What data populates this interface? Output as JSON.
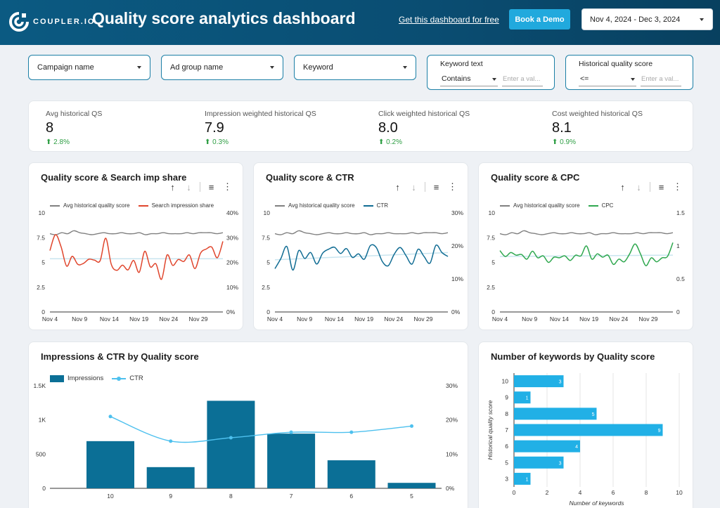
{
  "header": {
    "brand": "COUPLER.IO",
    "title": "Quality score analytics dashboard",
    "get_link": "Get this dashboard for free",
    "demo_label": "Book a Demo",
    "date_range": "Nov 4, 2024 - Dec 3, 2024"
  },
  "filters": {
    "campaign": "Campaign name",
    "ad_group": "Ad group name",
    "keyword": "Keyword",
    "keyword_text": {
      "title": "Keyword text",
      "operator": "Contains",
      "placeholder": "Enter a val..."
    },
    "hist_qs": {
      "title": "Historical quality score",
      "operator": "<=",
      "placeholder": "Enter a val..."
    }
  },
  "kpis": [
    {
      "label": "Avg historical QS",
      "value": "8",
      "delta": "2.8%"
    },
    {
      "label": "Impression weighted historical QS",
      "value": "7.9",
      "delta": "0.3%"
    },
    {
      "label": "Click weighted historical QS",
      "value": "8.0",
      "delta": "0.2%"
    },
    {
      "label": "Cost weighted historical QS",
      "value": "8.1",
      "delta": "0.9%"
    }
  ],
  "colors": {
    "header": "#0a4d72",
    "accent": "#21a9dd",
    "bar": "#0b6f96",
    "red": "#e0452c",
    "blue": "#106c93",
    "green": "#2fa84f",
    "grey": "#808080"
  },
  "icons": [
    "arrow-up-icon",
    "arrow-down-icon",
    "filter-icon",
    "more-vert-icon",
    "chevron-down-icon",
    "trend-up-icon"
  ],
  "chart_data": [
    {
      "type": "line",
      "title": "Quality score & Search imp share",
      "x_ticks": [
        "Nov 4",
        "Nov 9",
        "Nov 14",
        "Nov 19",
        "Nov 24",
        "Nov 29"
      ],
      "y_left_ticks": [
        "0",
        "2.5",
        "5",
        "7.5",
        "10"
      ],
      "y_right_ticks": [
        "0%",
        "10%",
        "20%",
        "30%",
        "40%"
      ],
      "ylim_left": [
        0,
        10
      ],
      "ylim_right": [
        0,
        40
      ],
      "trendline": [
        21.5,
        21.5
      ],
      "series": [
        {
          "name": "Avg historical quality score",
          "axis": "left",
          "color": "#808080",
          "values": [
            7.9,
            7.8,
            8.0,
            7.9,
            8.2,
            8.0,
            7.9,
            7.8,
            7.9,
            8.0,
            7.9,
            7.9,
            8.0,
            7.9,
            7.9,
            8.0,
            7.8,
            7.9,
            7.9,
            8.0,
            7.9,
            7.9,
            7.9,
            8.0,
            7.9,
            8.0,
            8.0,
            8.0,
            7.9,
            8.0
          ]
        },
        {
          "name": "Search impression share",
          "axis": "right",
          "color": "#e0452c",
          "values": [
            24.8,
            31.2,
            26.3,
            18.5,
            22.5,
            19.2,
            19.6,
            21.3,
            20.9,
            20.7,
            29.8,
            19.2,
            16.8,
            18.9,
            17.0,
            20.8,
            16.0,
            24.5,
            18.2,
            19.4,
            13.2,
            23.0,
            18.8,
            21.2,
            20.4,
            23.0,
            17.5,
            23.8,
            25.4,
            26.2,
            21.9,
            28.5
          ]
        }
      ]
    },
    {
      "type": "line",
      "title": "Quality score & CTR",
      "x_ticks": [
        "Nov 4",
        "Nov 9",
        "Nov 14",
        "Nov 19",
        "Nov 24",
        "Nov 29"
      ],
      "y_left_ticks": [
        "0",
        "2.5",
        "5",
        "7.5",
        "10"
      ],
      "y_right_ticks": [
        "0%",
        "10%",
        "20%",
        "30%"
      ],
      "ylim_left": [
        0,
        10
      ],
      "ylim_right": [
        0,
        30
      ],
      "trendline": [
        15.8,
        18.0
      ],
      "series": [
        {
          "name": "Avg historical quality score",
          "axis": "left",
          "color": "#808080",
          "values": [
            7.9,
            7.8,
            8.0,
            7.9,
            8.2,
            8.0,
            7.9,
            7.8,
            7.9,
            8.0,
            7.9,
            7.9,
            8.0,
            7.9,
            7.9,
            8.0,
            7.8,
            7.9,
            7.9,
            8.0,
            7.9,
            7.9,
            7.9,
            8.0,
            7.9,
            8.0,
            8.0,
            8.0,
            7.9,
            8.0
          ]
        },
        {
          "name": "CTR",
          "axis": "right",
          "color": "#106c93",
          "values": [
            13.1,
            16.2,
            19.8,
            12.7,
            18.6,
            16.2,
            18.0,
            14.5,
            17.8,
            19.0,
            19.6,
            17.7,
            19.2,
            16.5,
            17.6,
            16.0,
            20.1,
            19.5,
            15.3,
            14.0,
            17.5,
            19.5,
            17.0,
            14.5,
            19.0,
            16.8,
            14.8,
            20.2,
            18.0,
            16.8
          ]
        }
      ]
    },
    {
      "type": "line",
      "title": "Quality score & CPC",
      "x_ticks": [
        "Nov 4",
        "Nov 9",
        "Nov 14",
        "Nov 19",
        "Nov 24",
        "Nov 29"
      ],
      "y_left_ticks": [
        "0",
        "2.5",
        "5",
        "7.5",
        "10"
      ],
      "y_right_ticks": [
        "0",
        "0.5",
        "1",
        "1.5"
      ],
      "ylim_left": [
        0,
        10
      ],
      "ylim_right": [
        0,
        1.5
      ],
      "trendline": [
        0.84,
        0.86
      ],
      "series": [
        {
          "name": "Avg historical quality score",
          "axis": "left",
          "color": "#808080",
          "values": [
            7.9,
            7.8,
            8.0,
            7.9,
            8.2,
            8.0,
            7.9,
            7.8,
            7.9,
            8.0,
            7.9,
            7.9,
            8.0,
            7.9,
            7.9,
            8.0,
            7.8,
            7.9,
            7.9,
            8.0,
            7.9,
            7.9,
            7.9,
            8.0,
            7.9,
            8.0,
            8.0,
            8.0,
            7.9,
            8.0
          ]
        },
        {
          "name": "CPC",
          "axis": "right",
          "color": "#2fa84f",
          "values": [
            0.93,
            0.84,
            0.9,
            0.86,
            0.87,
            0.8,
            0.92,
            0.82,
            0.85,
            0.75,
            0.83,
            0.82,
            0.85,
            0.78,
            0.86,
            0.85,
            1.0,
            0.8,
            0.88,
            0.83,
            0.86,
            0.72,
            0.8,
            0.76,
            0.88,
            1.03,
            0.88,
            0.7,
            0.82,
            0.76,
            0.82,
            0.84,
            1.05
          ]
        }
      ]
    },
    {
      "type": "bar",
      "title": "Impressions & CTR by Quality score",
      "categories": [
        "10",
        "9",
        "8",
        "7",
        "6",
        "5"
      ],
      "y_left_ticks": [
        "0",
        "500",
        "1K",
        "1.5K"
      ],
      "y_right_ticks": [
        "0%",
        "10%",
        "20%",
        "30%"
      ],
      "ylim_left": [
        0,
        1500
      ],
      "ylim_right": [
        0,
        30
      ],
      "series": [
        {
          "name": "Impressions",
          "type": "bar",
          "color": "#0b6f96",
          "values": [
            690,
            310,
            1280,
            800,
            410,
            80
          ]
        },
        {
          "name": "CTR",
          "type": "line",
          "color": "#4dc0ee",
          "values": [
            21.0,
            13.8,
            14.8,
            16.4,
            16.4,
            18.2
          ]
        }
      ]
    },
    {
      "type": "bar",
      "title": "Number of keywords by Quality score",
      "orientation": "horizontal",
      "categories": [
        "10",
        "9",
        "8",
        "7",
        "6",
        "5",
        "3"
      ],
      "values": [
        3,
        1,
        5,
        9,
        4,
        3,
        1
      ],
      "x_ticks": [
        "0",
        "2",
        "4",
        "6",
        "8",
        "10"
      ],
      "xlim": [
        0,
        10
      ],
      "xlabel": "Number of keywords",
      "ylabel": "Historical quality score",
      "color": "#21b0e6"
    }
  ]
}
